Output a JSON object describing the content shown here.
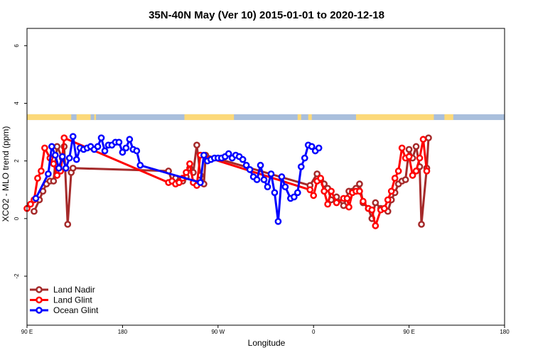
{
  "chart_data": {
    "type": "line",
    "title": "35N-40N May (Ver 10)   2015-01-01 to 2020-12-18",
    "xlabel": "Longitude",
    "ylabel": "XCO2 - MLO trend (ppm)",
    "xlim": [
      -90,
      180
    ],
    "ylim": [
      -3.7,
      6.6
    ],
    "grid": false,
    "legend_position": "bottom-left",
    "x_ticks": [
      {
        "value": -90,
        "label": "90 E"
      },
      {
        "value": -36,
        "label": "180"
      },
      {
        "value": 18,
        "label": "90 W"
      },
      {
        "value": 72,
        "label": "0"
      },
      {
        "value": 126,
        "label": "90 E"
      },
      {
        "value": 180,
        "label": "180"
      }
    ],
    "y_ticks": [
      {
        "value": -2,
        "label": "-2"
      },
      {
        "value": 0,
        "label": "0"
      },
      {
        "value": 2,
        "label": "2"
      },
      {
        "value": 4,
        "label": "4"
      },
      {
        "value": 6,
        "label": "6"
      }
    ],
    "land_strip": {
      "y_range": [
        3.42,
        3.62
      ],
      "ocean_color": "#a9bfdc",
      "land_color": "#fcd97a",
      "land_spans": [
        [
          -90,
          -65
        ],
        [
          -62,
          -54
        ],
        [
          -52,
          -51
        ],
        [
          -1,
          27
        ],
        [
          63,
          65
        ],
        [
          69,
          71
        ],
        [
          96,
          140
        ],
        [
          146,
          151
        ]
      ]
    },
    "series": [
      {
        "name": "Land Nadir",
        "color": "#a52a2a",
        "points": [
          [
            -86,
            0.25
          ],
          [
            -83,
            0.65
          ],
          [
            -81,
            0.95
          ],
          [
            -79,
            1.2
          ],
          [
            -77,
            1.3
          ],
          [
            -75,
            1.3
          ],
          [
            -73,
            2.5
          ],
          [
            -70,
            2.1
          ],
          [
            -69,
            2.5
          ],
          [
            -67,
            -0.2
          ],
          [
            -65,
            1.6
          ],
          [
            -64,
            1.75
          ],
          [
            -10,
            1.65
          ],
          [
            -8,
            1.3
          ],
          [
            -6,
            1.4
          ],
          [
            -4,
            1.3
          ],
          [
            -2,
            1.3
          ],
          [
            0,
            1.45
          ],
          [
            2,
            1.75
          ],
          [
            4,
            1.6
          ],
          [
            6,
            2.55
          ],
          [
            8,
            1.5
          ],
          [
            10,
            1.2
          ],
          [
            11,
            2.2
          ],
          [
            70,
            1.15
          ],
          [
            74,
            1.55
          ],
          [
            76,
            1.35
          ],
          [
            78,
            1.2
          ],
          [
            80,
            1.05
          ],
          [
            82,
            0.65
          ],
          [
            85,
            0.75
          ],
          [
            89,
            0.45
          ],
          [
            92,
            0.95
          ],
          [
            94,
            0.95
          ],
          [
            96,
            1.05
          ],
          [
            98,
            1.2
          ],
          [
            100,
            0.55
          ],
          [
            103,
            0.35
          ],
          [
            105,
            0.0
          ],
          [
            107,
            0.55
          ],
          [
            110,
            0.35
          ],
          [
            112,
            0.35
          ],
          [
            114,
            0.25
          ],
          [
            116,
            0.65
          ],
          [
            118,
            0.9
          ],
          [
            120,
            1.2
          ],
          [
            122,
            1.3
          ],
          [
            124,
            1.35
          ],
          [
            126,
            2.4
          ],
          [
            128,
            2.1
          ],
          [
            130,
            2.5
          ],
          [
            132,
            1.8
          ],
          [
            133,
            -0.2
          ],
          [
            136,
            1.75
          ],
          [
            137,
            2.8
          ]
        ]
      },
      {
        "name": "Land Glint",
        "color": "#ff0000",
        "points": [
          [
            -90,
            0.35
          ],
          [
            -88,
            0.5
          ],
          [
            -86,
            0.65
          ],
          [
            -84,
            1.4
          ],
          [
            -82,
            1.65
          ],
          [
            -80,
            2.45
          ],
          [
            -77,
            2.1
          ],
          [
            -75,
            1.9
          ],
          [
            -73,
            1.5
          ],
          [
            -71,
            1.65
          ],
          [
            -70,
            2.15
          ],
          [
            -69,
            2.8
          ],
          [
            -10,
            1.25
          ],
          [
            -8,
            1.3
          ],
          [
            -6,
            1.2
          ],
          [
            -4,
            1.25
          ],
          [
            -2,
            1.4
          ],
          [
            0,
            1.6
          ],
          [
            2,
            1.9
          ],
          [
            4,
            1.25
          ],
          [
            6,
            1.15
          ],
          [
            8,
            2.2
          ],
          [
            70,
            1.0
          ],
          [
            72,
            0.8
          ],
          [
            74,
            1.3
          ],
          [
            76,
            1.4
          ],
          [
            78,
            0.95
          ],
          [
            80,
            0.5
          ],
          [
            82,
            0.95
          ],
          [
            85,
            0.55
          ],
          [
            89,
            0.7
          ],
          [
            91,
            0.7
          ],
          [
            92,
            0.4
          ],
          [
            94,
            0.9
          ],
          [
            96,
            0.95
          ],
          [
            98,
            0.95
          ],
          [
            100,
            0.6
          ],
          [
            103,
            0.35
          ],
          [
            105,
            0.3
          ],
          [
            107,
            -0.25
          ],
          [
            110,
            0.3
          ],
          [
            112,
            0.35
          ],
          [
            114,
            0.65
          ],
          [
            116,
            0.95
          ],
          [
            118,
            1.4
          ],
          [
            120,
            1.65
          ],
          [
            122,
            2.45
          ],
          [
            124,
            2.1
          ],
          [
            126,
            2.15
          ],
          [
            128,
            1.5
          ],
          [
            130,
            1.65
          ],
          [
            132,
            2.1
          ],
          [
            134,
            2.75
          ],
          [
            136,
            1.65
          ]
        ]
      },
      {
        "name": "Ocean Glint",
        "color": "#0000ff",
        "points": [
          [
            -85,
            0.7
          ],
          [
            -78,
            1.55
          ],
          [
            -76,
            2.5
          ],
          [
            -74,
            2.2
          ],
          [
            -72,
            1.75
          ],
          [
            -70,
            2.15
          ],
          [
            -68,
            1.75
          ],
          [
            -66,
            2.1
          ],
          [
            -64,
            2.85
          ],
          [
            -62,
            2.05
          ],
          [
            -60,
            2.45
          ],
          [
            -58,
            2.4
          ],
          [
            -56,
            2.45
          ],
          [
            -54,
            2.5
          ],
          [
            -52,
            2.4
          ],
          [
            -50,
            2.5
          ],
          [
            -48,
            2.8
          ],
          [
            -46,
            2.35
          ],
          [
            -44,
            2.55
          ],
          [
            -42,
            2.55
          ],
          [
            -40,
            2.65
          ],
          [
            -38,
            2.65
          ],
          [
            -36,
            2.3
          ],
          [
            -34,
            2.45
          ],
          [
            -32,
            2.75
          ],
          [
            -30,
            2.4
          ],
          [
            -28,
            2.35
          ],
          [
            -26,
            1.85
          ],
          [
            8,
            1.25
          ],
          [
            10,
            2.2
          ],
          [
            12,
            2.0
          ],
          [
            14,
            2.05
          ],
          [
            16,
            2.1
          ],
          [
            18,
            2.1
          ],
          [
            20,
            2.1
          ],
          [
            22,
            2.15
          ],
          [
            24,
            2.25
          ],
          [
            26,
            2.1
          ],
          [
            28,
            2.2
          ],
          [
            30,
            2.15
          ],
          [
            32,
            2.05
          ],
          [
            34,
            1.85
          ],
          [
            36,
            1.7
          ],
          [
            38,
            1.45
          ],
          [
            40,
            1.35
          ],
          [
            42,
            1.85
          ],
          [
            44,
            1.35
          ],
          [
            46,
            1.1
          ],
          [
            48,
            1.55
          ],
          [
            50,
            0.9
          ],
          [
            52,
            -0.1
          ],
          [
            54,
            1.45
          ],
          [
            56,
            1.1
          ],
          [
            59,
            0.7
          ],
          [
            61,
            0.75
          ],
          [
            63,
            0.9
          ],
          [
            65,
            1.8
          ],
          [
            67,
            2.1
          ],
          [
            69,
            2.55
          ],
          [
            71,
            2.5
          ],
          [
            73,
            2.35
          ],
          [
            75,
            2.45
          ]
        ]
      }
    ]
  }
}
